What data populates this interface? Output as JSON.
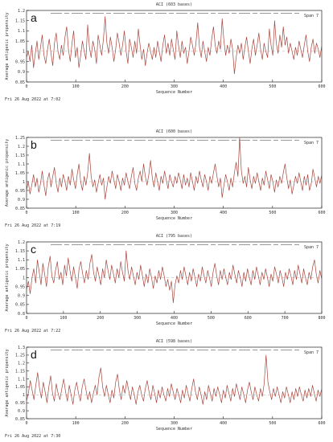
{
  "chart_data": [
    {
      "type": "line",
      "panel_letter": "a",
      "title": "ACI  (603 bases)",
      "xlabel": "Sequence Number",
      "ylabel": "Average antigenic propensity",
      "span_label": "Span 7",
      "timestamp": "Fri 26 Aug 2022 at 7:02",
      "xlim": [
        0,
        600
      ],
      "ylim": [
        0.85,
        1.2
      ],
      "xticks": [
        0,
        100,
        200,
        300,
        400,
        500,
        600
      ],
      "yticks": [
        0.85,
        0.9,
        0.95,
        1,
        1.05,
        1.1,
        1.15,
        1.2
      ],
      "threshold": 1.0,
      "series": [
        {
          "values": [
            0.97,
            1.0,
            0.95,
            1.03,
            0.92,
            0.99,
            1.05,
            0.96,
            1.02,
            1.08,
            0.98,
            0.94,
            1.01,
            1.06,
            0.99,
            0.93,
            1.04,
            1.09,
            1.0,
            0.96,
            1.03,
            0.98,
            1.07,
            1.12,
            1.01,
            0.95,
            1.04,
            1.1,
            0.97,
            1.02,
            0.92,
            0.98,
            1.05,
            1.0,
            0.96,
            1.13,
            1.02,
            0.97,
            1.05,
            1.01,
            0.94,
            1.08,
            1.03,
            0.98,
            1.06,
            1.17,
            1.04,
            0.99,
            1.07,
            1.02,
            0.95,
            1.01,
            1.09,
            1.04,
            0.98,
            1.03,
            1.1,
            1.0,
            0.94,
            1.06,
            1.02,
            0.97,
            1.05,
            0.99,
            1.11,
            1.03,
            0.96,
            1.01,
            0.93,
            0.99,
            1.04,
            1.0,
            0.96,
            1.02,
            0.97,
            1.05,
            1.0,
            0.95,
            1.03,
            1.08,
            0.99,
            1.04,
            0.98,
            1.06,
            1.01,
            0.96,
            1.1,
            1.03,
            0.97,
            1.05,
            0.99,
            1.02,
            0.94,
            1.0,
            1.07,
            1.03,
            0.98,
            1.04,
            1.14,
            1.02,
            0.97,
            1.05,
            1.0,
            0.95,
            1.02,
            0.98,
            1.06,
            1.12,
            1.03,
            0.99,
            1.05,
            1.01,
            1.16,
            1.05,
            0.98,
            1.03,
            0.99,
            1.06,
            1.01,
            0.89,
            0.97,
            1.03,
            0.99,
            1.04,
            0.96,
            1.02,
            1.07,
            1.0,
            0.94,
            1.01,
            1.06,
            0.98,
            1.03,
            1.09,
            1.01,
            0.96,
            1.04,
            1.0,
            0.97,
            1.11,
            1.03,
            0.98,
            1.15,
            1.04,
            0.99,
            1.08,
            1.02,
            1.12,
            1.03,
            1.07,
            0.99,
            1.04,
            1.0,
            0.96,
            1.02,
            0.98,
            1.05,
            1.01,
            0.97,
            1.03,
            1.08,
            1.0,
            0.95,
            1.02,
            1.06,
            0.99,
            1.04,
            1.01,
            0.97,
            1.03
          ]
        }
      ]
    },
    {
      "type": "line",
      "panel_letter": "b",
      "title": "ACI  (600 bases)",
      "xlabel": "Sequence Number",
      "ylabel": "Average antigenic propensity",
      "span_label": "Span 7",
      "timestamp": "Fri 26 Aug 2022 at 7:19",
      "xlim": [
        0,
        600
      ],
      "ylim": [
        0.85,
        1.25
      ],
      "xticks": [
        0,
        100,
        200,
        300,
        400,
        500,
        600
      ],
      "yticks": [
        0.85,
        0.9,
        0.95,
        1,
        1.05,
        1.1,
        1.15,
        1.2,
        1.25
      ],
      "threshold": 1.0,
      "series": [
        {
          "values": [
            0.95,
            1.0,
            0.93,
            0.98,
            1.04,
            0.97,
            1.02,
            0.94,
            0.99,
            1.06,
            0.98,
            0.92,
            1.01,
            1.05,
            0.97,
            1.03,
            1.08,
            0.99,
            0.94,
            1.02,
            0.97,
            1.04,
            1.0,
            0.95,
            1.03,
            0.98,
            1.07,
            1.01,
            0.96,
            1.04,
            1.1,
            1.0,
            0.95,
            1.03,
            0.98,
            1.05,
            1.16,
            1.03,
            0.97,
            1.01,
            0.94,
            0.99,
            1.04,
            0.98,
            1.02,
            0.9,
            0.97,
            1.03,
            0.99,
            1.06,
            1.01,
            0.96,
            1.04,
            1.0,
            0.95,
            1.02,
            0.98,
            1.05,
            1.0,
            0.96,
            1.03,
            1.08,
            0.99,
            0.95,
            1.02,
            1.06,
            1.0,
            1.1,
            1.03,
            0.98,
            1.04,
            1.12,
            1.02,
            0.97,
            1.05,
            1.0,
            0.95,
            1.03,
            0.99,
            1.06,
            1.01,
            0.96,
            1.04,
            1.0,
            0.97,
            1.03,
            0.99,
            1.05,
            1.01,
            0.96,
            1.04,
            0.98,
            1.02,
            0.97,
            1.05,
            1.0,
            0.95,
            1.03,
            0.99,
            1.06,
            1.01,
            0.97,
            1.04,
            1.0,
            0.95,
            1.03,
            0.99,
            1.05,
            1.1,
            1.03,
            0.97,
            1.02,
            0.91,
            0.98,
            1.04,
            1.0,
            0.95,
            1.02,
            0.97,
            1.05,
            1.11,
            1.03,
            1.25,
            1.06,
            0.99,
            1.03,
            0.97,
            1.08,
            1.01,
            0.96,
            1.03,
            0.99,
            1.05,
            1.0,
            0.95,
            1.02,
            0.98,
            1.06,
            1.01,
            0.96,
            1.04,
            1.0,
            0.94,
            1.01,
            0.97,
            1.03,
            0.99,
            1.05,
            1.1,
            1.02,
            0.96,
            1.01,
            0.93,
            0.98,
            1.03,
            0.99,
            1.05,
            1.0,
            0.95,
            1.03,
            0.98,
            1.04,
            0.95,
            0.99,
            1.07,
            1.02,
            0.97,
            1.03,
            0.99,
            1.04
          ]
        }
      ]
    },
    {
      "type": "line",
      "panel_letter": "c",
      "title": "ACI  (795 bases)",
      "xlabel": "Sequence Number",
      "ylabel": "Average antigenic propensity",
      "span_label": "Span 7",
      "timestamp": "Fri 26 Aug 2022 at 7:22",
      "xlim": [
        0,
        800
      ],
      "ylim": [
        0.8,
        1.2
      ],
      "xticks": [
        0,
        100,
        200,
        300,
        400,
        500,
        600,
        700,
        800
      ],
      "yticks": [
        0.8,
        0.85,
        0.9,
        0.95,
        1,
        1.05,
        1.1,
        1.15,
        1.2
      ],
      "threshold": 1.0,
      "series": [
        {
          "values": [
            0.93,
            0.98,
            0.91,
            1.0,
            1.05,
            0.97,
            1.1,
            1.03,
            0.96,
            1.08,
            1.02,
            0.95,
            1.06,
            1.12,
            1.01,
            0.97,
            1.04,
            1.09,
            0.99,
            1.03,
            0.96,
            1.07,
            1.01,
            1.11,
            1.04,
            0.98,
            1.06,
            1.0,
            0.94,
            1.05,
            1.09,
            1.02,
            0.97,
            1.04,
            0.99,
            1.08,
            1.13,
            1.03,
            0.98,
            1.06,
            1.01,
            0.96,
            1.05,
            1.0,
            1.1,
            1.04,
            0.99,
            1.07,
            1.02,
            0.97,
            1.05,
            1.0,
            1.09,
            1.03,
            0.98,
            1.15,
            1.04,
            0.99,
            1.06,
            1.01,
            0.96,
            1.03,
            0.99,
            1.07,
            1.01,
            0.95,
            1.02,
            0.97,
            1.05,
            1.0,
            0.94,
            1.01,
            0.97,
            1.04,
            0.99,
            1.06,
            1.01,
            0.95,
            0.99,
            0.93,
            0.98,
            0.86,
            0.96,
            1.01,
            0.97,
            1.04,
            0.99,
            1.06,
            1.01,
            0.96,
            1.03,
            0.98,
            1.05,
            1.0,
            0.95,
            1.02,
            0.98,
            1.06,
            1.01,
            0.97,
            1.04,
            1.0,
            0.95,
            1.03,
            1.08,
            1.01,
            0.96,
            1.04,
            0.99,
            1.05,
            1.0,
            0.96,
            1.03,
            0.99,
            1.07,
            1.02,
            0.97,
            1.04,
            1.0,
            0.95,
            1.03,
            0.98,
            1.05,
            1.0,
            0.96,
            1.04,
            0.99,
            1.06,
            1.01,
            0.96,
            1.03,
            0.99,
            1.05,
            1.0,
            0.95,
            1.02,
            0.98,
            1.06,
            1.02,
            0.97,
            1.04,
            1.0,
            0.95,
            1.03,
            0.99,
            1.05,
            1.01,
            0.96,
            1.04,
            0.99,
            1.07,
            1.02,
            0.97,
            1.05,
            1.0,
            0.96,
            1.03,
            0.99,
            1.06,
            1.1,
            1.02,
            0.97,
            1.04,
            0.99
          ]
        }
      ]
    },
    {
      "type": "line",
      "panel_letter": "d",
      "title": "ACI  (598 bases)",
      "xlabel": "Sequence Number",
      "ylabel": "Average antigenic propensity",
      "span_label": "Span 7",
      "timestamp": "Fri 26 Aug 2022 at 7:30",
      "xlim": [
        0,
        600
      ],
      "ylim": [
        0.85,
        1.3
      ],
      "xticks": [
        0,
        100,
        200,
        300,
        400,
        500,
        600
      ],
      "yticks": [
        0.85,
        0.9,
        0.95,
        1,
        1.05,
        1.1,
        1.15,
        1.2,
        1.25,
        1.3
      ],
      "threshold": 1.0,
      "series": [
        {
          "values": [
            0.96,
            1.01,
            1.09,
            1.03,
            0.97,
            1.06,
            1.14,
            1.04,
            0.98,
            1.08,
            1.02,
            0.95,
            1.05,
            1.12,
            1.01,
            0.96,
            1.07,
            1.01,
            0.97,
            1.04,
            1.1,
            1.02,
            0.96,
            1.06,
            1.0,
            0.94,
            1.03,
            1.08,
            1.01,
            0.96,
            1.05,
            1.1,
            1.03,
            0.97,
            1.02,
            0.95,
            1.01,
            1.06,
            1.0,
            1.11,
            1.17,
            1.05,
            0.99,
            1.06,
            1.0,
            0.95,
            1.03,
            0.98,
            1.08,
            1.13,
            1.03,
            0.97,
            1.06,
            1.01,
            1.09,
            1.03,
            0.97,
            1.05,
            1.0,
            0.94,
            1.02,
            1.06,
            1.0,
            0.96,
            1.04,
            1.09,
            1.02,
            0.97,
            1.06,
            1.01,
            0.95,
            1.03,
            0.98,
            1.05,
            1.0,
            0.96,
            1.04,
            0.99,
            1.07,
            1.02,
            0.97,
            1.04,
            1.0,
            0.95,
            1.03,
            0.98,
            1.06,
            1.01,
            0.96,
            1.04,
            1.1,
            1.02,
            0.97,
            1.05,
            1.0,
            0.94,
            1.02,
            0.97,
            1.06,
            1.01,
            0.96,
            1.04,
            0.99,
            1.05,
            1.0,
            0.95,
            1.03,
            0.98,
            1.06,
            1.01,
            0.96,
            1.04,
            0.99,
            1.07,
            1.02,
            0.97,
            1.05,
            1.0,
            0.95,
            1.03,
            1.08,
            1.02,
            0.97,
            1.05,
            1.0,
            0.96,
            1.04,
            0.99,
            1.07,
            1.25,
            1.08,
            1.02,
            0.97,
            1.04,
            0.99,
            1.05,
            1.0,
            0.95,
            1.02,
            0.98,
            1.05,
            1.0,
            0.95,
            1.02,
            0.97,
            1.04,
            0.99,
            1.05,
            1.0,
            0.96,
            1.03,
            0.98,
            1.04,
            0.99,
            1.06,
            1.01,
            0.96,
            1.03,
            0.99,
            1.04
          ]
        }
      ]
    }
  ]
}
